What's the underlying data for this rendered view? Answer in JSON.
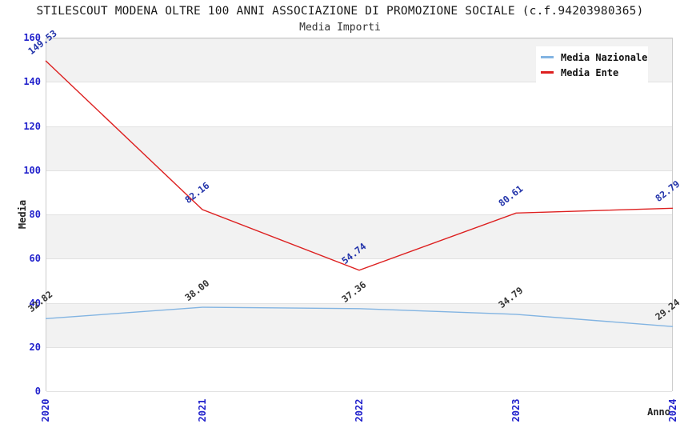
{
  "header": {
    "title": "STILESCOUT MODENA OLTRE 100 ANNI ASSOCIAZIONE DI PROMOZIONE SOCIALE (c.f.94203980365)",
    "subtitle": "Media Importi"
  },
  "chart_data": {
    "type": "line",
    "title": "STILESCOUT MODENA OLTRE 100 ANNI ASSOCIAZIONE DI PROMOZIONE SOCIALE (c.f.94203980365)",
    "subtitle": "Media Importi",
    "xlabel": "Anno",
    "ylabel": "Media",
    "categories": [
      "2020",
      "2021",
      "2022",
      "2023",
      "2024"
    ],
    "series": [
      {
        "name": "Media Nazionale",
        "color": "#82b4e2",
        "label_color": "#333333",
        "values": [
          32.82,
          38.0,
          37.36,
          34.79,
          29.24
        ],
        "labels": [
          "32.82",
          "38.00",
          "37.36",
          "34.79",
          "29.24"
        ]
      },
      {
        "name": "Media Ente",
        "color": "#dd2020",
        "label_color": "#2233aa",
        "values": [
          149.53,
          82.16,
          54.74,
          80.61,
          82.79
        ],
        "labels": [
          "149.53",
          "82.16",
          "54.74",
          "80.61",
          "82.79"
        ]
      }
    ],
    "ylim": [
      0,
      160
    ],
    "yticks": [
      0,
      20,
      40,
      60,
      80,
      100,
      120,
      140,
      160
    ],
    "grid": true,
    "legend_position": "top-right",
    "band_colors": [
      "#ffffff",
      "#f2f2f2"
    ],
    "tick_label_color": "#2222cc"
  }
}
